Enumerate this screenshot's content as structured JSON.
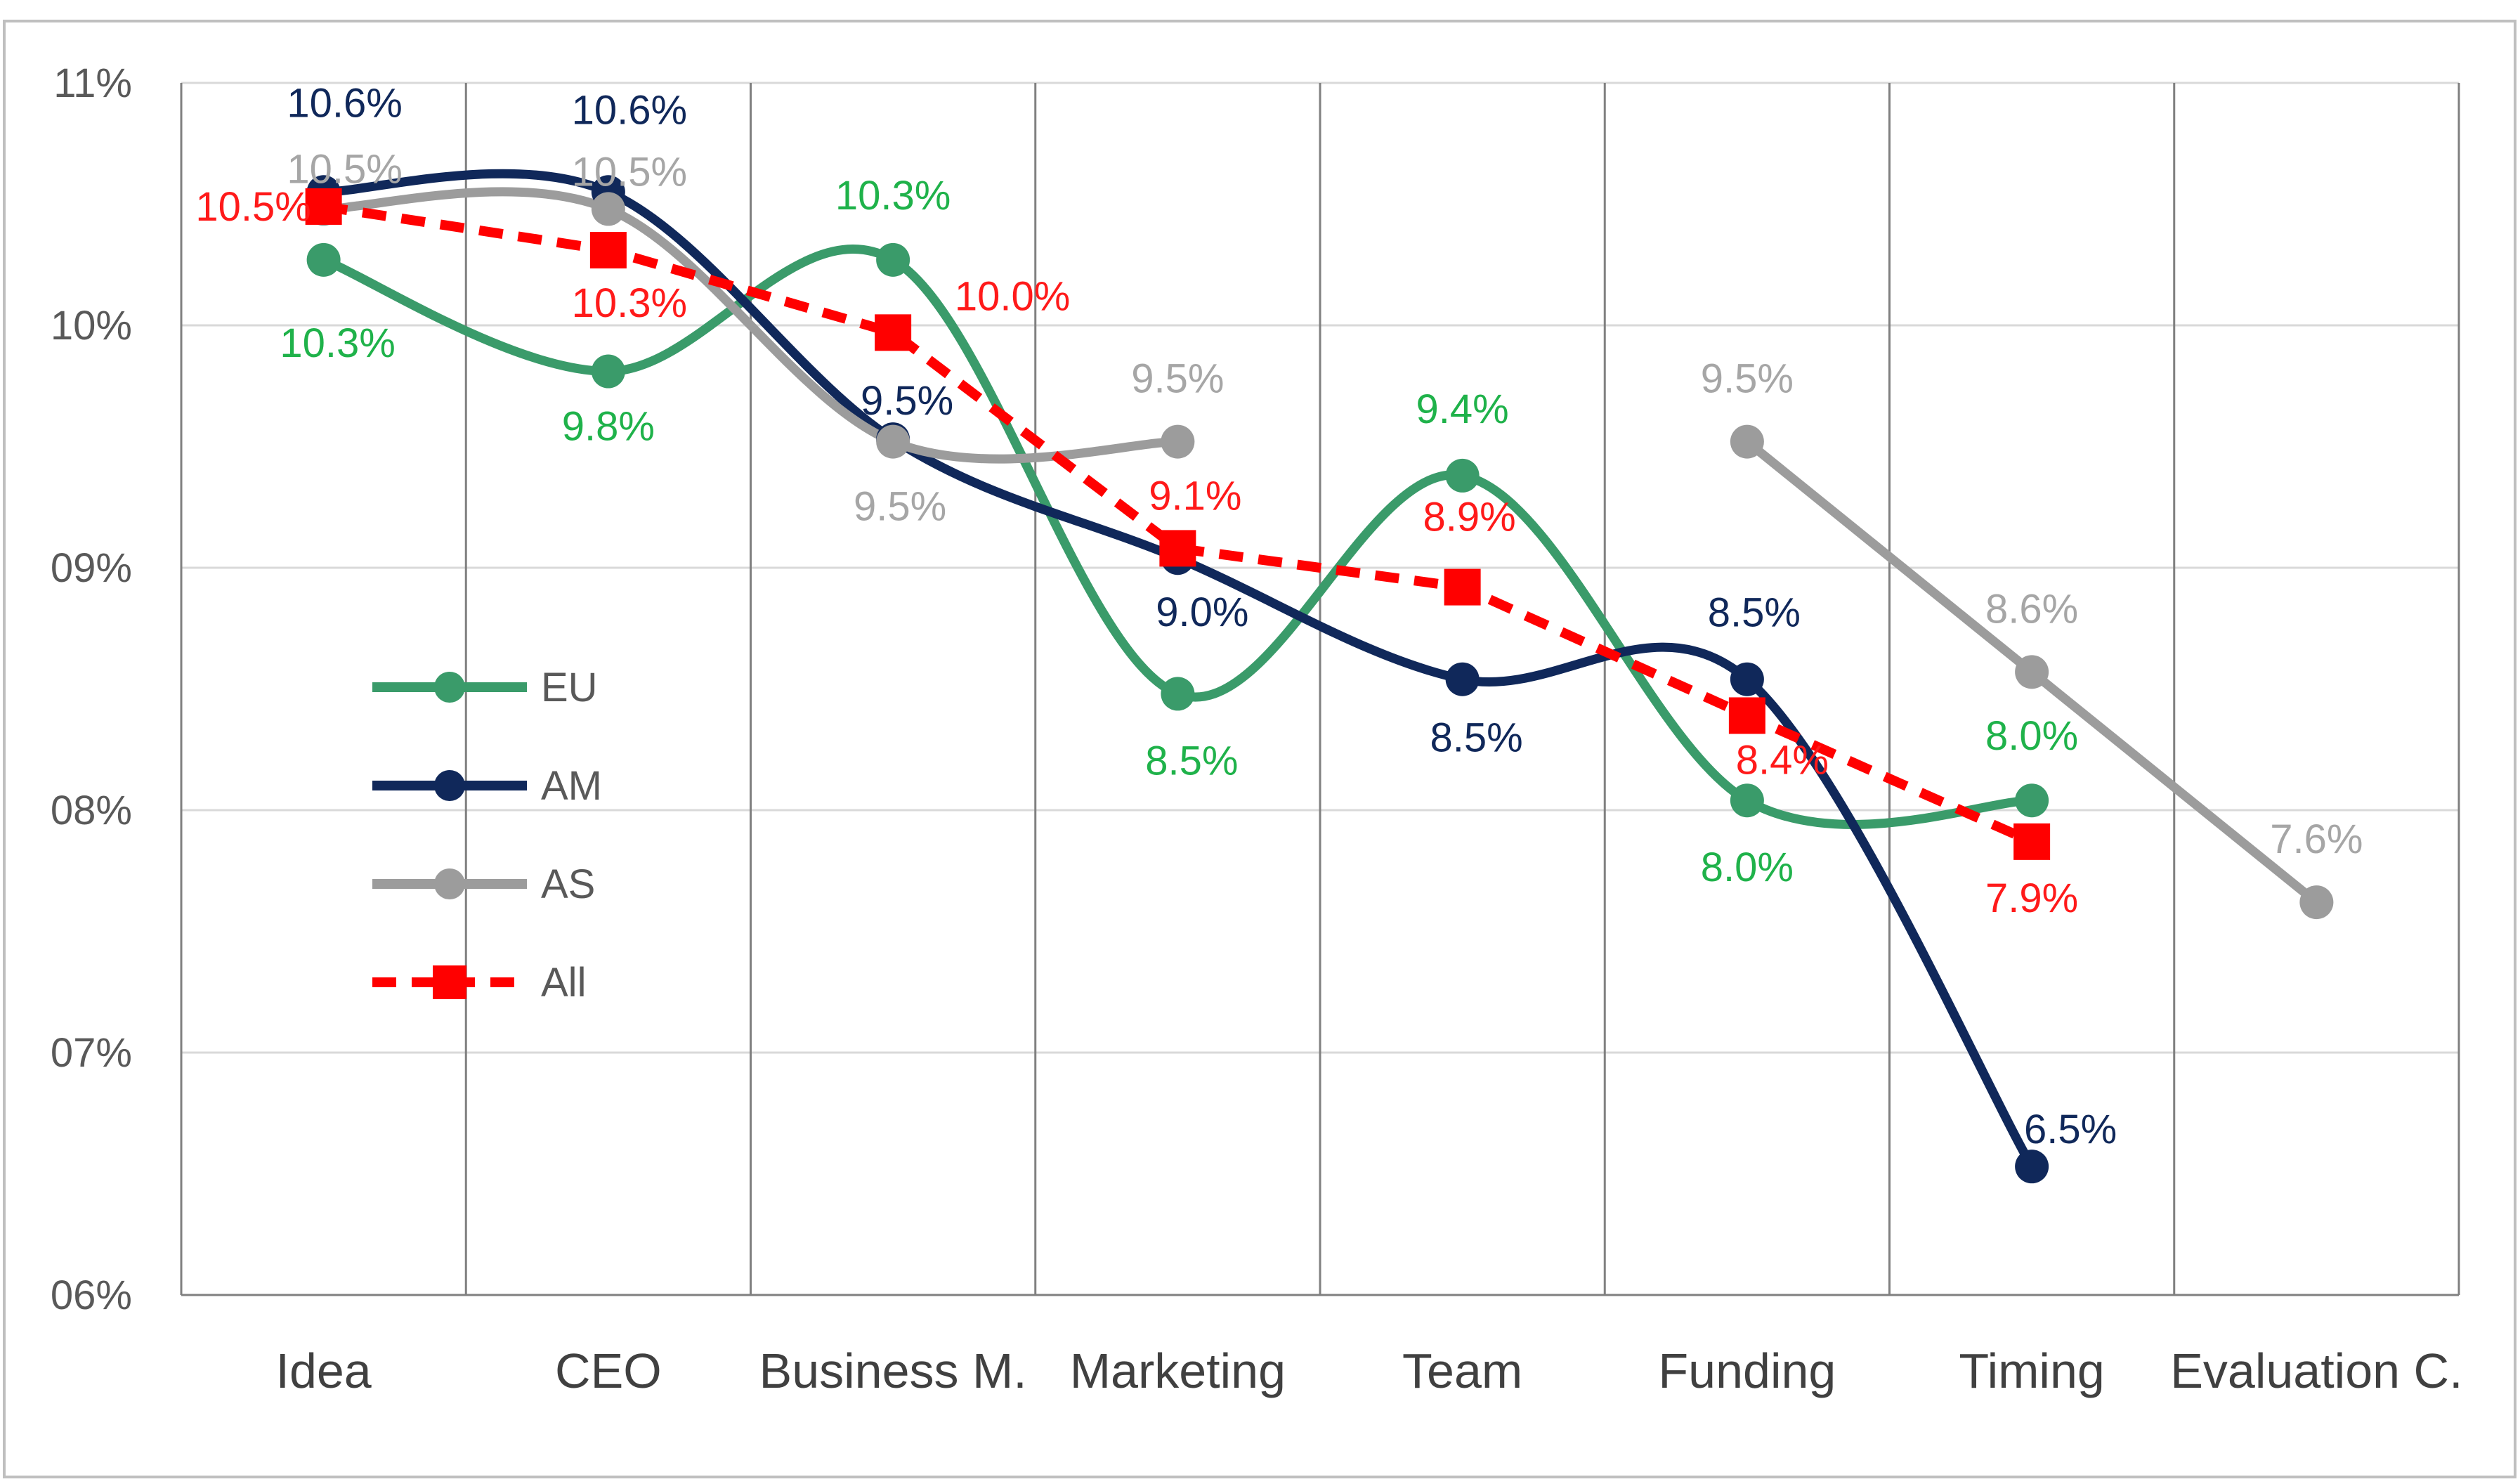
{
  "chart_data": {
    "type": "line",
    "categories": [
      "Idea",
      "CEO",
      "Business M.",
      "Marketing",
      "Team",
      "Funding",
      "Timing",
      "Evaluation C."
    ],
    "ylim": [
      6,
      11
    ],
    "yticks": [
      6,
      7,
      8,
      9,
      10,
      11
    ],
    "ytick_labels": [
      "06%",
      "07%",
      "08%",
      "09%",
      "10%",
      "11%"
    ],
    "grid": true,
    "legend_position": "left",
    "series": [
      {
        "name": "EU",
        "color": "#3a9b6a",
        "label_color": "#1fb24a",
        "marker": "circle",
        "dashed": false,
        "values": [
          10.27,
          9.81,
          10.27,
          8.48,
          9.38,
          8.04,
          8.04,
          null
        ],
        "labels": [
          "10.3%",
          "9.8%",
          "10.3%",
          "8.5%",
          "9.4%",
          "8.0%",
          "8.0%",
          ""
        ]
      },
      {
        "name": "AM",
        "color": "#10285a",
        "label_color": "#10285a",
        "marker": "circle",
        "dashed": false,
        "values": [
          10.55,
          10.55,
          9.53,
          9.04,
          8.54,
          8.54,
          6.53,
          null
        ],
        "labels": [
          "10.6%",
          "10.6%",
          "9.5%",
          "9.0%",
          "8.5%",
          "8.5%",
          "6.5%",
          ""
        ]
      },
      {
        "name": "AS",
        "color": "#9c9c9c",
        "label_color": "#a6a6a6",
        "marker": "circle",
        "dashed": false,
        "values": [
          10.48,
          10.48,
          9.52,
          9.52,
          null,
          9.52,
          8.57,
          7.62
        ],
        "labels": [
          "10.5%",
          "10.5%",
          "9.5%",
          "9.5%",
          "",
          "9.5%",
          "8.6%",
          "7.6%"
        ]
      },
      {
        "name": "All",
        "color": "#ff0000",
        "label_color": "#ff1a1a",
        "marker": "square",
        "dashed": true,
        "values": [
          10.49,
          10.31,
          9.97,
          9.08,
          8.92,
          8.39,
          7.87,
          null
        ],
        "labels": [
          "10.5%",
          "10.3%",
          "10.0%",
          "9.1%",
          "8.9%",
          "8.4%",
          "7.9%",
          ""
        ]
      }
    ]
  }
}
